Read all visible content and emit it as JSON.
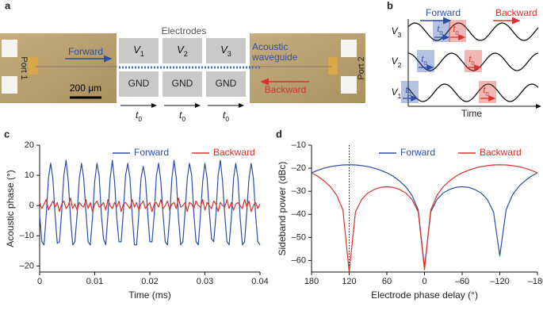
{
  "figure_a": {
    "label": "a",
    "electrodes": "Electrodes",
    "voltages": [
      {
        "main": "V",
        "sub": "1"
      },
      {
        "main": "V",
        "sub": "2"
      },
      {
        "main": "V",
        "sub": "3"
      }
    ],
    "ground": [
      "GND",
      "GND",
      "GND"
    ],
    "delays": [
      {
        "main": "t",
        "sub": "0"
      },
      {
        "main": "t",
        "sub": "0"
      },
      {
        "main": "t",
        "sub": "0"
      }
    ],
    "port1": "Port 1",
    "port2": "Port 2",
    "forward": "Forward",
    "backward": "Backward",
    "waveguide": [
      "Acoustic",
      "waveguide"
    ],
    "scale_bar": "200 μm"
  },
  "figure_b": {
    "label": "b",
    "forward": "Forward",
    "backward": "Backward",
    "rows": [
      {
        "main": "V",
        "sub": "3"
      },
      {
        "main": "V",
        "sub": "2"
      },
      {
        "main": "V",
        "sub": "1"
      }
    ],
    "delays": [
      {
        "main": "t",
        "sub": "0"
      },
      {
        "main": "t",
        "sub": "0"
      },
      {
        "main": "t",
        "sub": "0"
      },
      {
        "main": "t",
        "sub": "0"
      },
      {
        "main": "t",
        "sub": "0"
      },
      {
        "main": "t",
        "sub": "0"
      }
    ],
    "x_label": "Time"
  },
  "chart_data": [
    {
      "type": "line",
      "label": "c",
      "x_label": "Time (ms)",
      "y_label": "Acoustic phase (°)",
      "xlim": [
        0,
        0.04
      ],
      "xticks": [
        0,
        0.01,
        0.02,
        0.03,
        0.04
      ],
      "ylim": [
        -22,
        20
      ],
      "yticks": [
        {
          "value": -20,
          "label": "–20"
        },
        {
          "value": -10,
          "label": "–10"
        },
        0,
        10,
        20
      ],
      "legend": "top-right",
      "x": [
        0,
        0.0004,
        0.0008,
        0.0012,
        0.0016,
        0.002,
        0.0024,
        0.0028,
        0.0032,
        0.0036,
        0.004,
        0.0044,
        0.0048,
        0.0052,
        0.0056,
        0.006,
        0.0064,
        0.0068,
        0.0072,
        0.0076,
        0.008,
        0.0084,
        0.0088,
        0.0092,
        0.0096,
        0.01,
        0.0104,
        0.0108,
        0.0112,
        0.0116,
        0.012,
        0.0124,
        0.0128,
        0.0132,
        0.0136,
        0.014,
        0.0144,
        0.0148,
        0.0152,
        0.0156,
        0.016,
        0.0164,
        0.0168,
        0.0172,
        0.0176,
        0.018,
        0.0184,
        0.0188,
        0.0192,
        0.0196,
        0.02,
        0.0204,
        0.0208,
        0.0212,
        0.0216,
        0.022,
        0.0224,
        0.0228,
        0.0232,
        0.0236,
        0.024,
        0.0244,
        0.0248,
        0.0252,
        0.0256,
        0.026,
        0.0264,
        0.0268,
        0.0272,
        0.0276,
        0.028,
        0.0284,
        0.0288,
        0.0292,
        0.0296,
        0.03,
        0.0304,
        0.0308,
        0.0312,
        0.0316,
        0.032,
        0.0324,
        0.0328,
        0.0332,
        0.0336,
        0.034,
        0.0344,
        0.0348,
        0.0352,
        0.0356,
        0.036,
        0.0364,
        0.0368,
        0.0372,
        0.0376,
        0.038,
        0.0384,
        0.0388,
        0.0392,
        0.0396,
        0.04
      ],
      "series": [
        {
          "name": "Forward",
          "color": "#2b4ea6",
          "values": [
            -3,
            -12,
            -13,
            -3,
            9,
            14,
            9,
            -3,
            -12.5,
            -12,
            -2,
            10,
            15,
            8,
            -4,
            -13,
            -12,
            -3,
            9,
            14,
            9,
            -2,
            -12,
            -13,
            -4,
            8,
            14,
            10,
            -3,
            -11,
            -13,
            -3,
            9,
            15,
            8,
            -4,
            -12,
            -12,
            -2,
            10,
            14,
            9,
            -3,
            -13,
            -13,
            -3,
            9,
            13,
            9,
            -2,
            -12,
            -12,
            -3,
            10,
            14,
            8,
            -3,
            -12,
            -13,
            -4,
            9,
            15,
            9,
            -4,
            -13,
            -12,
            -2,
            9,
            14,
            10,
            -3,
            -12,
            -13,
            -3,
            8,
            14,
            9,
            -2,
            -11,
            -12,
            -3,
            10,
            15,
            8,
            -3,
            -12,
            -13,
            -4,
            9,
            14,
            9,
            -4,
            -13,
            -12,
            -2,
            9,
            14,
            9,
            -3,
            -12,
            -13
          ]
        },
        {
          "name": "Backward",
          "color": "#d7322b",
          "values": [
            1,
            -1,
            0.5,
            2,
            -1.5,
            0,
            1.5,
            -0.5,
            1,
            -2,
            0.5,
            1.5,
            -1,
            0,
            2.5,
            -1,
            0.5,
            -1.5,
            1,
            0,
            -0.5,
            2,
            -1,
            1,
            -2,
            0.5,
            1.5,
            -0.5,
            0,
            1,
            -1.5,
            2,
            0,
            -1,
            1,
            -0.5,
            1.5,
            -2,
            0.5,
            1,
            0,
            -1,
            2,
            -0.5,
            1,
            -1.5,
            0.5,
            1.5,
            -1,
            0,
            1,
            -2,
            0.5,
            1,
            -0.5,
            2,
            -1,
            0,
            1.5,
            -1.5,
            0.5,
            1,
            -1,
            2.5,
            -0.5,
            0,
            1,
            -2,
            1,
            0.5,
            -1,
            1.5,
            0,
            -0.5,
            2,
            -1.5,
            1,
            0,
            -1,
            1.5,
            0.5,
            -2,
            1,
            0,
            -0.5,
            2,
            -1,
            1,
            -1.5,
            0.5,
            1,
            0,
            -1,
            2,
            -0.5,
            1.5,
            -2,
            0,
            1,
            -1,
            0.5
          ]
        }
      ]
    },
    {
      "type": "line",
      "label": "d",
      "x_label": "Electrode phase delay (°)",
      "y_label": "Sideband power (dBc)",
      "xlim": [
        180,
        -180
      ],
      "xticks": [
        180,
        120,
        60,
        0,
        {
          "value": -60,
          "label": "–60"
        },
        {
          "value": -120,
          "label": "–120"
        },
        {
          "value": -180,
          "label": "–180"
        }
      ],
      "ylim": [
        -65,
        -10
      ],
      "yticks": [
        {
          "value": -10,
          "label": "–10"
        },
        {
          "value": -20,
          "label": "–20"
        },
        {
          "value": -30,
          "label": "–30"
        },
        {
          "value": -40,
          "label": "–40"
        },
        {
          "value": -50,
          "label": "–50"
        },
        {
          "value": -60,
          "label": "–60"
        }
      ],
      "legend": "top-right",
      "vline_x": 120,
      "x": [
        180,
        170,
        160,
        150,
        140,
        130,
        120,
        110,
        100,
        90,
        80,
        70,
        60,
        50,
        40,
        30,
        20,
        10,
        0,
        -10,
        -20,
        -30,
        -40,
        -50,
        -60,
        -70,
        -80,
        -90,
        -100,
        -110,
        -120,
        -130,
        -140,
        -150,
        -160,
        -170,
        -180
      ],
      "series": [
        {
          "name": "Forward",
          "color": "#2b4ea6",
          "values": [
            -22,
            -20.9,
            -20,
            -19.3,
            -18.9,
            -18.6,
            -18.5,
            -18.6,
            -18.9,
            -19.3,
            -20,
            -20.9,
            -22,
            -23.5,
            -25.5,
            -28,
            -31.7,
            -38.1,
            -63,
            -38.9,
            -33.5,
            -30.7,
            -29.2,
            -28.3,
            -28,
            -28.3,
            -29.2,
            -30.7,
            -33.5,
            -38.9,
            -58,
            -38.1,
            -31.7,
            -28,
            -25.5,
            -23.5,
            -22
          ]
        },
        {
          "name": "Backward",
          "color": "#d7322b",
          "values": [
            -22,
            -23.5,
            -25.5,
            -28,
            -31.7,
            -38.1,
            -65,
            -38.9,
            -33.5,
            -30.7,
            -29.2,
            -28.3,
            -28,
            -28.3,
            -29.2,
            -30.7,
            -33.5,
            -38.9,
            -64,
            -38.1,
            -31.7,
            -28,
            -25.5,
            -23.5,
            -22,
            -20.9,
            -20,
            -19.3,
            -18.9,
            -18.6,
            -18.5,
            -18.6,
            -18.9,
            -19.3,
            -20,
            -20.9,
            -22
          ]
        }
      ]
    }
  ]
}
